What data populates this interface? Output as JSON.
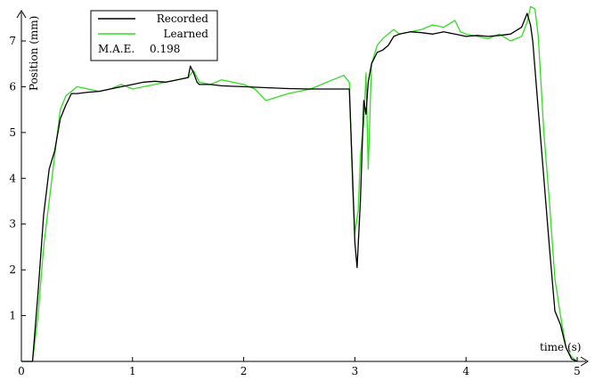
{
  "chart_data": {
    "type": "line",
    "title": "",
    "xlabel": "time (s)",
    "ylabel": "Position (mm)",
    "xlim": [
      0,
      5
    ],
    "ylim": [
      0,
      7.7
    ],
    "x_ticks": [
      "0",
      "1",
      "2",
      "3",
      "4",
      "5"
    ],
    "y_ticks": [
      "1",
      "2",
      "3",
      "4",
      "5",
      "6",
      "7"
    ],
    "grid": false,
    "legend_position": "top-left",
    "series": [
      {
        "name": "Recorded",
        "color": "#000000",
        "x": [
          0.0,
          0.1,
          0.15,
          0.2,
          0.25,
          0.3,
          0.35,
          0.4,
          0.45,
          0.5,
          0.6,
          0.7,
          0.8,
          0.9,
          1.0,
          1.1,
          1.2,
          1.3,
          1.4,
          1.5,
          1.52,
          1.55,
          1.58,
          1.6,
          1.65,
          1.7,
          1.8,
          2.0,
          2.2,
          2.4,
          2.6,
          2.8,
          2.95,
          2.98,
          3.0,
          3.02,
          3.05,
          3.08,
          3.1,
          3.12,
          3.15,
          3.2,
          3.25,
          3.3,
          3.35,
          3.4,
          3.5,
          3.6,
          3.7,
          3.8,
          3.9,
          4.0,
          4.1,
          4.2,
          4.3,
          4.4,
          4.5,
          4.55,
          4.58,
          4.6,
          4.65,
          4.7,
          4.75,
          4.8,
          4.85,
          4.9,
          4.95,
          5.0
        ],
        "values": [
          0.0,
          0.0,
          1.5,
          3.2,
          4.2,
          4.6,
          5.3,
          5.6,
          5.85,
          5.85,
          5.88,
          5.9,
          5.95,
          6.0,
          6.05,
          6.1,
          6.12,
          6.1,
          6.15,
          6.2,
          6.45,
          6.3,
          6.1,
          6.05,
          6.05,
          6.05,
          6.02,
          6.0,
          5.98,
          5.96,
          5.95,
          5.95,
          5.95,
          4.0,
          2.6,
          2.05,
          3.5,
          5.7,
          5.4,
          6.1,
          6.5,
          6.75,
          6.8,
          6.9,
          7.1,
          7.15,
          7.2,
          7.18,
          7.15,
          7.2,
          7.15,
          7.1,
          7.12,
          7.1,
          7.12,
          7.15,
          7.3,
          7.6,
          7.35,
          7.0,
          5.5,
          4.0,
          2.5,
          1.1,
          0.8,
          0.3,
          0.05,
          0.0
        ]
      },
      {
        "name": "Learned",
        "color": "#33dd22",
        "x": [
          0.0,
          0.1,
          0.15,
          0.2,
          0.25,
          0.3,
          0.35,
          0.4,
          0.45,
          0.5,
          0.6,
          0.7,
          0.8,
          0.9,
          1.0,
          1.1,
          1.2,
          1.3,
          1.4,
          1.5,
          1.55,
          1.6,
          1.7,
          1.8,
          1.9,
          2.0,
          2.1,
          2.2,
          2.4,
          2.6,
          2.8,
          2.9,
          2.95,
          2.98,
          3.0,
          3.03,
          3.05,
          3.08,
          3.1,
          3.12,
          3.15,
          3.2,
          3.25,
          3.3,
          3.35,
          3.4,
          3.5,
          3.6,
          3.7,
          3.8,
          3.9,
          3.95,
          4.0,
          4.1,
          4.2,
          4.3,
          4.4,
          4.5,
          4.55,
          4.58,
          4.62,
          4.65,
          4.7,
          4.75,
          4.8,
          4.85,
          4.9,
          4.95,
          5.0
        ],
        "values": [
          0.0,
          0.0,
          1.0,
          2.5,
          3.5,
          4.5,
          5.5,
          5.8,
          5.9,
          6.0,
          5.95,
          5.9,
          5.95,
          6.05,
          5.95,
          6.0,
          6.05,
          6.1,
          6.15,
          6.2,
          6.35,
          6.1,
          6.05,
          6.15,
          6.1,
          6.05,
          5.95,
          5.7,
          5.85,
          5.95,
          6.15,
          6.25,
          6.1,
          3.8,
          2.8,
          3.3,
          4.5,
          5.2,
          6.3,
          4.2,
          6.5,
          6.9,
          7.05,
          7.15,
          7.25,
          7.15,
          7.2,
          7.25,
          7.35,
          7.3,
          7.45,
          7.2,
          7.15,
          7.1,
          7.05,
          7.15,
          7.0,
          7.1,
          7.4,
          7.75,
          7.7,
          7.1,
          5.0,
          3.5,
          1.8,
          1.0,
          0.3,
          0.1,
          0.0
        ]
      }
    ],
    "annotations": [
      {
        "label": "M.A.E.",
        "value": "0.198"
      }
    ]
  }
}
